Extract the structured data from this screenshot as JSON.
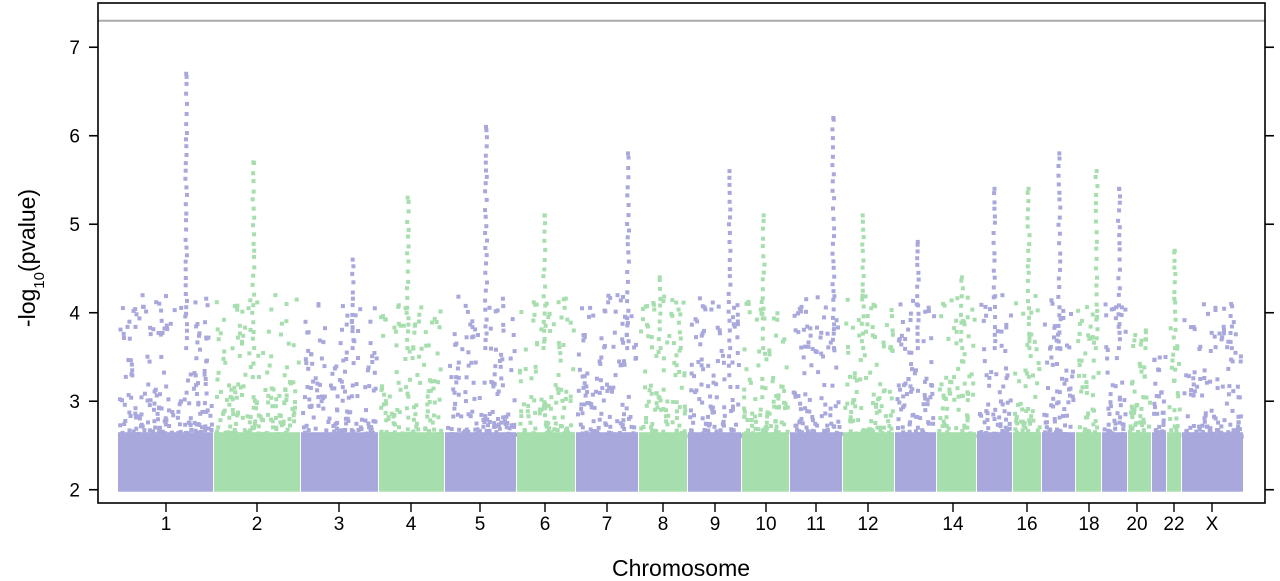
{
  "chart_data": {
    "type": "scatter",
    "subtype": "manhattan",
    "title": "",
    "xlabel": "Chromosome",
    "ylabel": "-log10(pvalue)",
    "ylim": [
      2,
      7.5
    ],
    "yticks": [
      2,
      3,
      4,
      5,
      6,
      7
    ],
    "genome_wide_threshold": 7.3,
    "grid": false,
    "colors": {
      "odd": "#a8a8dc",
      "even": "#a7deae",
      "threshold_line": "#aaaaaa",
      "frame": "#000000"
    },
    "xtick_labels": [
      "1",
      "2",
      "3",
      "4",
      "5",
      "6",
      "7",
      "8",
      "9",
      "10",
      "11",
      "12",
      "14",
      "16",
      "18",
      "20",
      "22",
      "X"
    ],
    "chromosomes": [
      "1",
      "2",
      "3",
      "4",
      "5",
      "6",
      "7",
      "8",
      "9",
      "10",
      "11",
      "12",
      "13",
      "14",
      "15",
      "16",
      "17",
      "18",
      "19",
      "20",
      "21",
      "22",
      "X"
    ],
    "top_hits": [
      {
        "chromosome": "1",
        "peak": 6.7
      },
      {
        "chromosome": "2",
        "peak": 5.7
      },
      {
        "chromosome": "3",
        "peak": 4.6
      },
      {
        "chromosome": "4",
        "peak": 5.3
      },
      {
        "chromosome": "5",
        "peak": 6.1
      },
      {
        "chromosome": "6",
        "peak": 5.1
      },
      {
        "chromosome": "7",
        "peak": 5.8
      },
      {
        "chromosome": "8",
        "peak": 4.4
      },
      {
        "chromosome": "9",
        "peak": 5.6
      },
      {
        "chromosome": "10",
        "peak": 5.1
      },
      {
        "chromosome": "11",
        "peak": 6.2
      },
      {
        "chromosome": "12",
        "peak": 5.1
      },
      {
        "chromosome": "13",
        "peak": 4.8
      },
      {
        "chromosome": "14",
        "peak": 4.4
      },
      {
        "chromosome": "15",
        "peak": 5.4
      },
      {
        "chromosome": "16",
        "peak": 5.4
      },
      {
        "chromosome": "17",
        "peak": 5.8
      },
      {
        "chromosome": "18",
        "peak": 5.6
      },
      {
        "chromosome": "19",
        "peak": 5.4
      },
      {
        "chromosome": "20",
        "peak": 3.8
      },
      {
        "chromosome": "21",
        "peak": 3.5
      },
      {
        "chromosome": "22",
        "peak": 4.7
      },
      {
        "chromosome": "X",
        "peak": 4.1
      }
    ]
  }
}
